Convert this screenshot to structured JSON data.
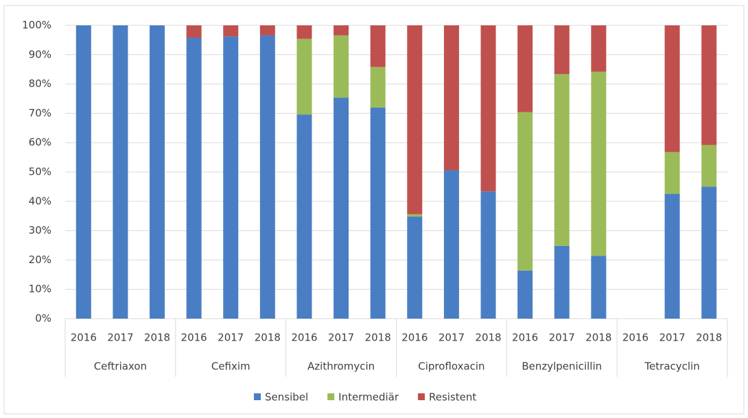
{
  "chart_data": {
    "type": "stacked_bar",
    "groups": [
      "Ceftriaxon",
      "Cefixim",
      "Azithromycin",
      "Ciprofloxacin",
      "Benzylpenicillin",
      "Tetracyclin"
    ],
    "categories": [
      "2016",
      "2017",
      "2018",
      "2016",
      "2017",
      "2018",
      "2016",
      "2017",
      "2018",
      "2016",
      "2017",
      "2018",
      "2016",
      "2017",
      "2018",
      "2016",
      "2017",
      "2018"
    ],
    "series": [
      {
        "name": "Sensibel",
        "color": "#4a7ec4",
        "values": [
          100,
          100,
          100,
          95.8,
          96.2,
          96.6,
          69.6,
          75.4,
          72,
          34.8,
          50.6,
          43.4,
          16.4,
          24.8,
          21.4,
          null,
          42.6,
          45
        ]
      },
      {
        "name": "Intermediär",
        "color": "#9bbb59",
        "values": [
          0,
          0,
          0,
          0,
          0,
          0,
          25.8,
          21.2,
          13.8,
          0.8,
          0,
          0,
          54,
          58.6,
          62.8,
          null,
          14.2,
          14.2
        ]
      },
      {
        "name": "Resistent",
        "color": "#c0504d",
        "values": [
          0,
          0,
          0,
          4.2,
          3.8,
          3.4,
          4.6,
          3.4,
          14.2,
          64.4,
          49.4,
          56.6,
          29.6,
          16.6,
          15.8,
          null,
          43.2,
          40.8
        ]
      }
    ],
    "ylim": [
      0,
      100
    ],
    "yticks": [
      {
        "value": 0,
        "label": "0%"
      },
      {
        "value": 10,
        "label": "10%"
      },
      {
        "value": 20,
        "label": "20%"
      },
      {
        "value": 30,
        "label": "30%"
      },
      {
        "value": 40,
        "label": "40%"
      },
      {
        "value": 50,
        "label": "50%"
      },
      {
        "value": 60,
        "label": "60%"
      },
      {
        "value": 70,
        "label": "70%"
      },
      {
        "value": 80,
        "label": "80%"
      },
      {
        "value": 90,
        "label": "90%"
      },
      {
        "value": 100,
        "label": "100%"
      }
    ],
    "grid": true,
    "legend": "bottom"
  }
}
